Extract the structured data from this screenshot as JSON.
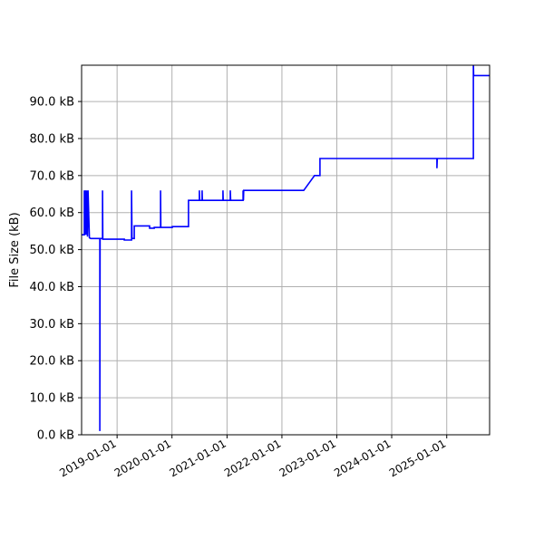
{
  "chart_data": {
    "type": "line",
    "title": "",
    "xlabel": "",
    "ylabel": "File Size (kB)",
    "xlim": [
      "2018-05-10",
      "2025-10-13"
    ],
    "ylim": [
      0,
      99.8
    ],
    "grid": true,
    "line_color": "#0000ff",
    "x_ticks": [
      "2019-01-01",
      "2020-01-01",
      "2021-01-01",
      "2022-01-01",
      "2023-01-01",
      "2024-01-01",
      "2025-01-01"
    ],
    "y_ticks": [
      0,
      10,
      20,
      30,
      40,
      50,
      60,
      70,
      80,
      90
    ],
    "y_tick_labels": [
      "0.0 kB",
      "10.0 kB",
      "20.0 kB",
      "30.0 kB",
      "40.0 kB",
      "50.0 kB",
      "60.0 kB",
      "70.0 kB",
      "80.0 kB",
      "90.0 kB"
    ],
    "series": [
      {
        "points": [
          [
            "2018-05-10",
            54.0
          ],
          [
            "2018-05-28",
            54.0
          ],
          [
            "2018-05-28",
            66.0
          ],
          [
            "2018-06-02",
            54.0
          ],
          [
            "2018-06-05",
            66.0
          ],
          [
            "2018-06-10",
            54.0
          ],
          [
            "2018-06-14",
            66.0
          ],
          [
            "2018-06-18",
            53.5
          ],
          [
            "2018-06-22",
            66.0
          ],
          [
            "2018-07-01",
            53.2
          ],
          [
            "2018-07-10",
            53.0
          ],
          [
            "2018-09-08",
            53.0
          ],
          [
            "2018-09-08",
            1.0
          ],
          [
            "2018-09-10",
            53.0
          ],
          [
            "2018-09-26",
            53.0
          ],
          [
            "2018-09-26",
            66.0
          ],
          [
            "2018-09-28",
            52.8
          ],
          [
            "2019-02-18",
            52.8
          ],
          [
            "2019-02-18",
            52.6
          ],
          [
            "2019-04-07",
            52.6
          ],
          [
            "2019-04-07",
            66.0
          ],
          [
            "2019-04-10",
            53.0
          ],
          [
            "2019-04-25",
            53.0
          ],
          [
            "2019-04-25",
            56.4
          ],
          [
            "2019-08-05",
            56.4
          ],
          [
            "2019-08-05",
            55.8
          ],
          [
            "2019-09-05",
            55.8
          ],
          [
            "2019-09-05",
            56.0
          ],
          [
            "2019-10-17",
            56.0
          ],
          [
            "2019-10-17",
            66.0
          ],
          [
            "2019-10-19",
            56.0
          ],
          [
            "2020-01-03",
            56.0
          ],
          [
            "2020-01-03",
            56.2
          ],
          [
            "2020-04-20",
            56.2
          ],
          [
            "2020-04-20",
            63.3
          ],
          [
            "2020-07-01",
            63.3
          ],
          [
            "2020-07-01",
            66.0
          ],
          [
            "2020-07-03",
            63.3
          ],
          [
            "2020-07-19",
            63.3
          ],
          [
            "2020-07-19",
            66.0
          ],
          [
            "2020-07-21",
            63.3
          ],
          [
            "2020-12-05",
            63.3
          ],
          [
            "2020-12-05",
            66.0
          ],
          [
            "2020-12-07",
            63.3
          ],
          [
            "2021-01-23",
            63.3
          ],
          [
            "2021-01-23",
            66.0
          ],
          [
            "2021-01-25",
            63.3
          ],
          [
            "2021-04-18",
            63.3
          ],
          [
            "2021-04-18",
            66.0
          ],
          [
            "2021-04-20",
            63.3
          ],
          [
            "2021-04-22",
            66.0
          ],
          [
            "2022-05-26",
            66.0
          ],
          [
            "2022-08-06",
            70.0
          ],
          [
            "2022-09-11",
            70.0
          ],
          [
            "2022-09-11",
            74.6
          ],
          [
            "2024-10-28",
            74.6
          ],
          [
            "2024-10-28",
            72.0
          ],
          [
            "2024-10-30",
            74.6
          ],
          [
            "2025-06-27",
            74.6
          ],
          [
            "2025-06-27",
            100.5
          ],
          [
            "2025-06-29",
            97.0
          ],
          [
            "2025-10-13",
            97.0
          ]
        ]
      }
    ]
  }
}
